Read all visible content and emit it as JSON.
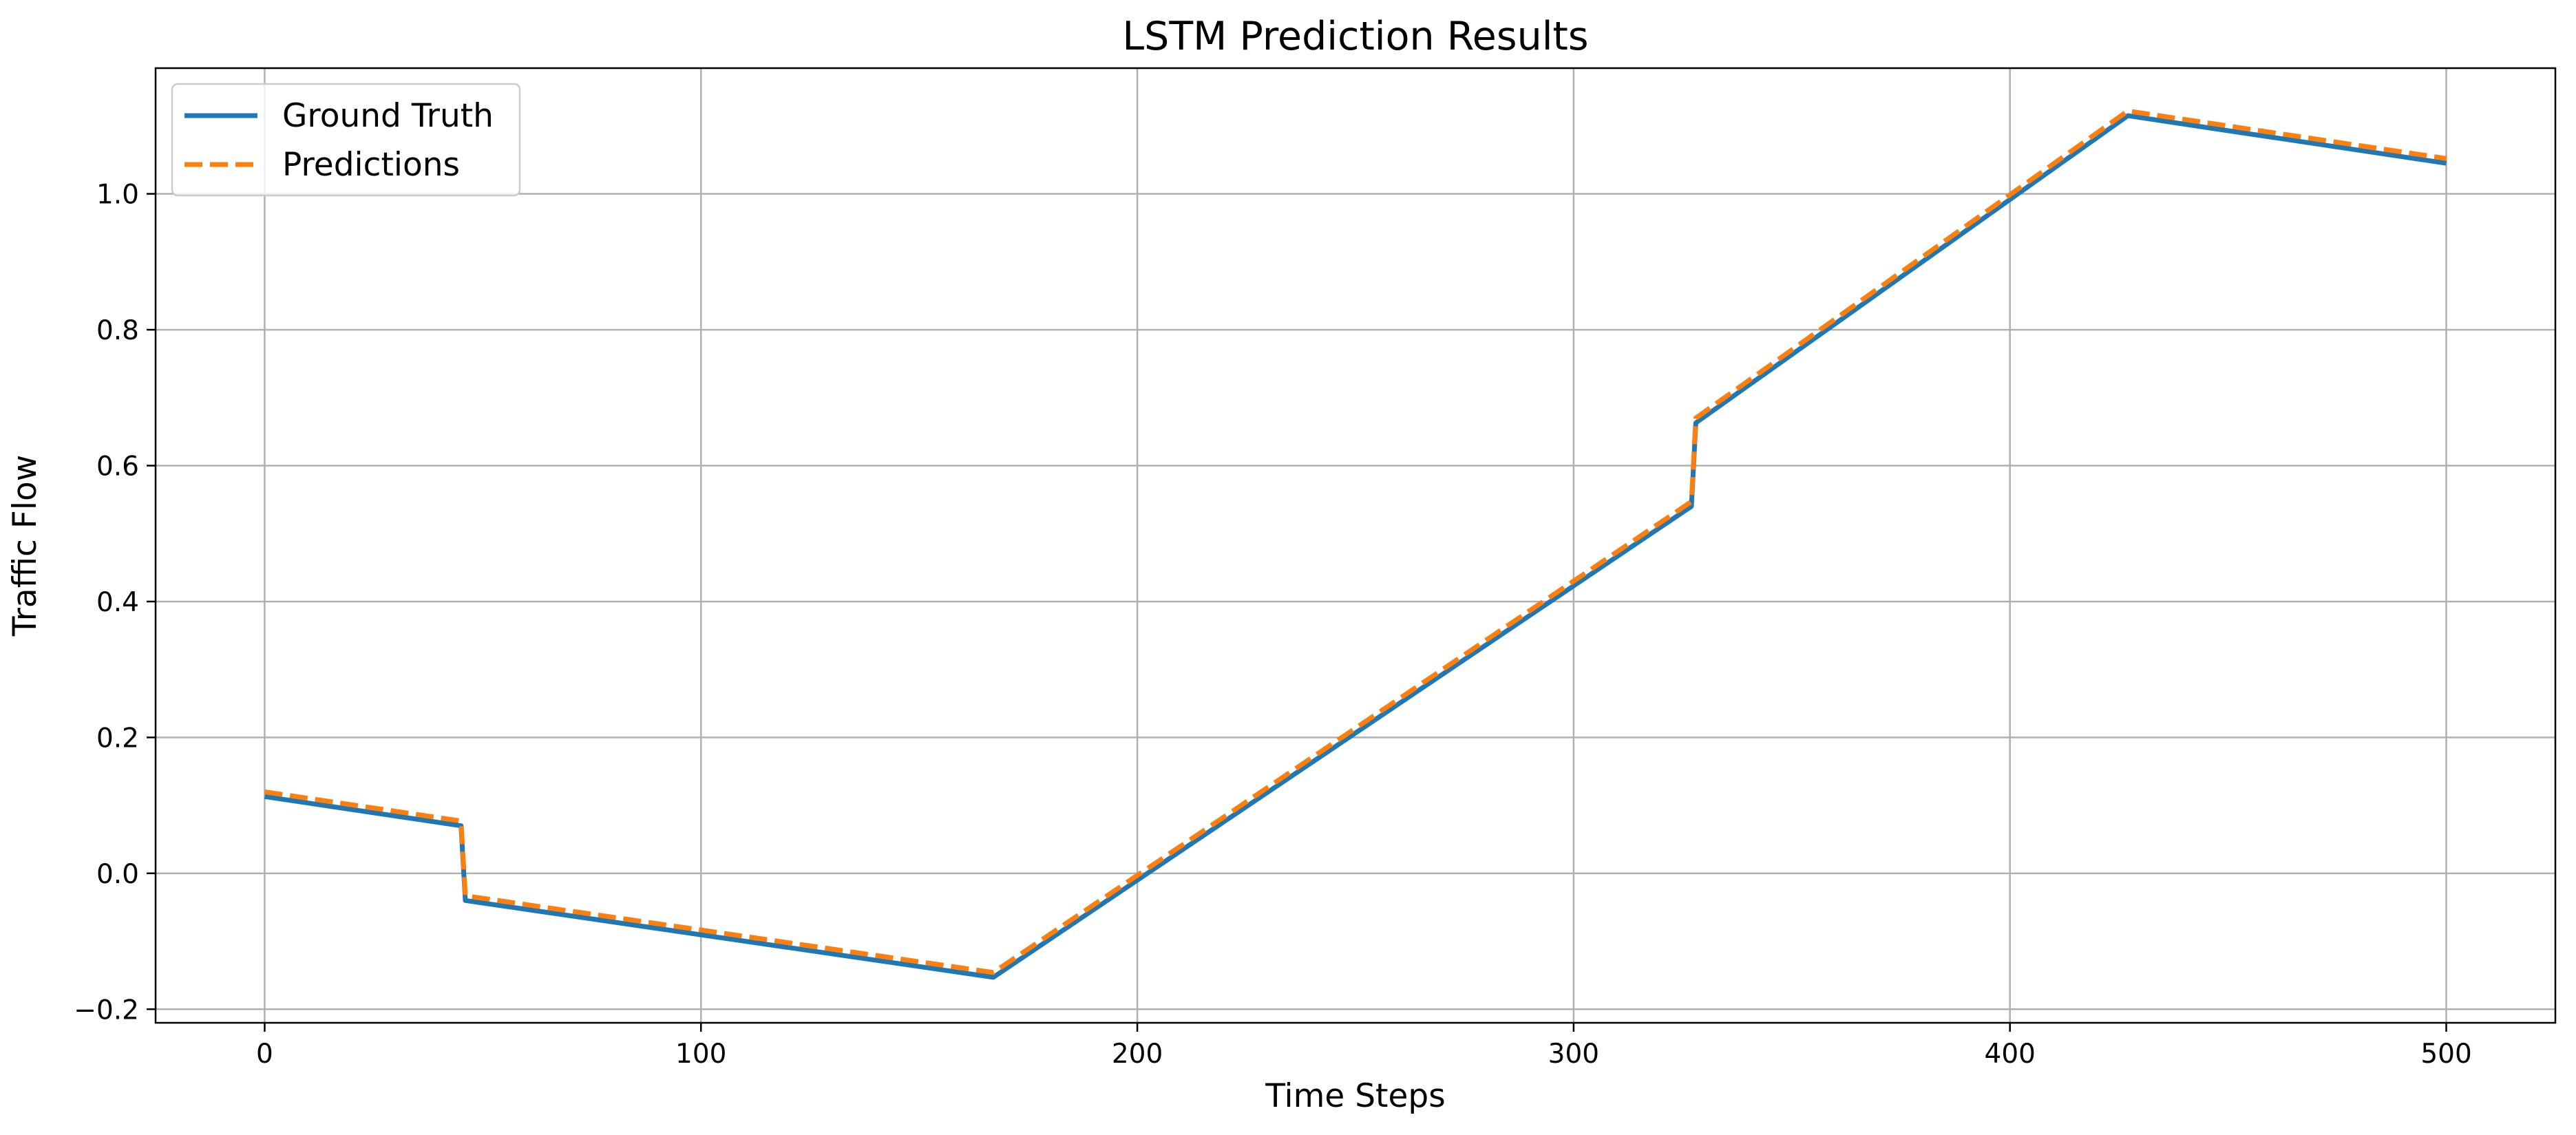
{
  "chart_data": {
    "type": "line",
    "title": "LSTM Prediction Results",
    "xlabel": "Time Steps",
    "ylabel": "Traffic Flow",
    "xlim": [
      -25,
      525
    ],
    "ylim": [
      -0.22,
      1.185
    ],
    "xticks": [
      0,
      100,
      200,
      300,
      400,
      500
    ],
    "yticks": [
      -0.2,
      0.0,
      0.2,
      0.4,
      0.6,
      0.8,
      1.0
    ],
    "xtick_labels": [
      "0",
      "100",
      "200",
      "300",
      "400",
      "500"
    ],
    "ytick_labels": [
      "−0.2",
      "0.0",
      "0.2",
      "0.4",
      "0.6",
      "0.8",
      "1.0"
    ],
    "grid": true,
    "legend_position": "top-left",
    "series": [
      {
        "name": "Ground Truth",
        "color": "#1f77b4",
        "style": "solid",
        "x": [
          0,
          45,
          46,
          167,
          327,
          328,
          427,
          500
        ],
        "y": [
          0.113,
          0.07,
          -0.04,
          -0.153,
          0.54,
          0.663,
          1.115,
          1.045
        ]
      },
      {
        "name": "Predictions",
        "color": "#ff7f0e",
        "style": "dashed",
        "x": [
          0,
          45,
          46,
          167,
          327,
          328,
          427,
          500
        ],
        "y": [
          0.12,
          0.077,
          -0.033,
          -0.146,
          0.547,
          0.67,
          1.122,
          1.052
        ]
      }
    ]
  }
}
